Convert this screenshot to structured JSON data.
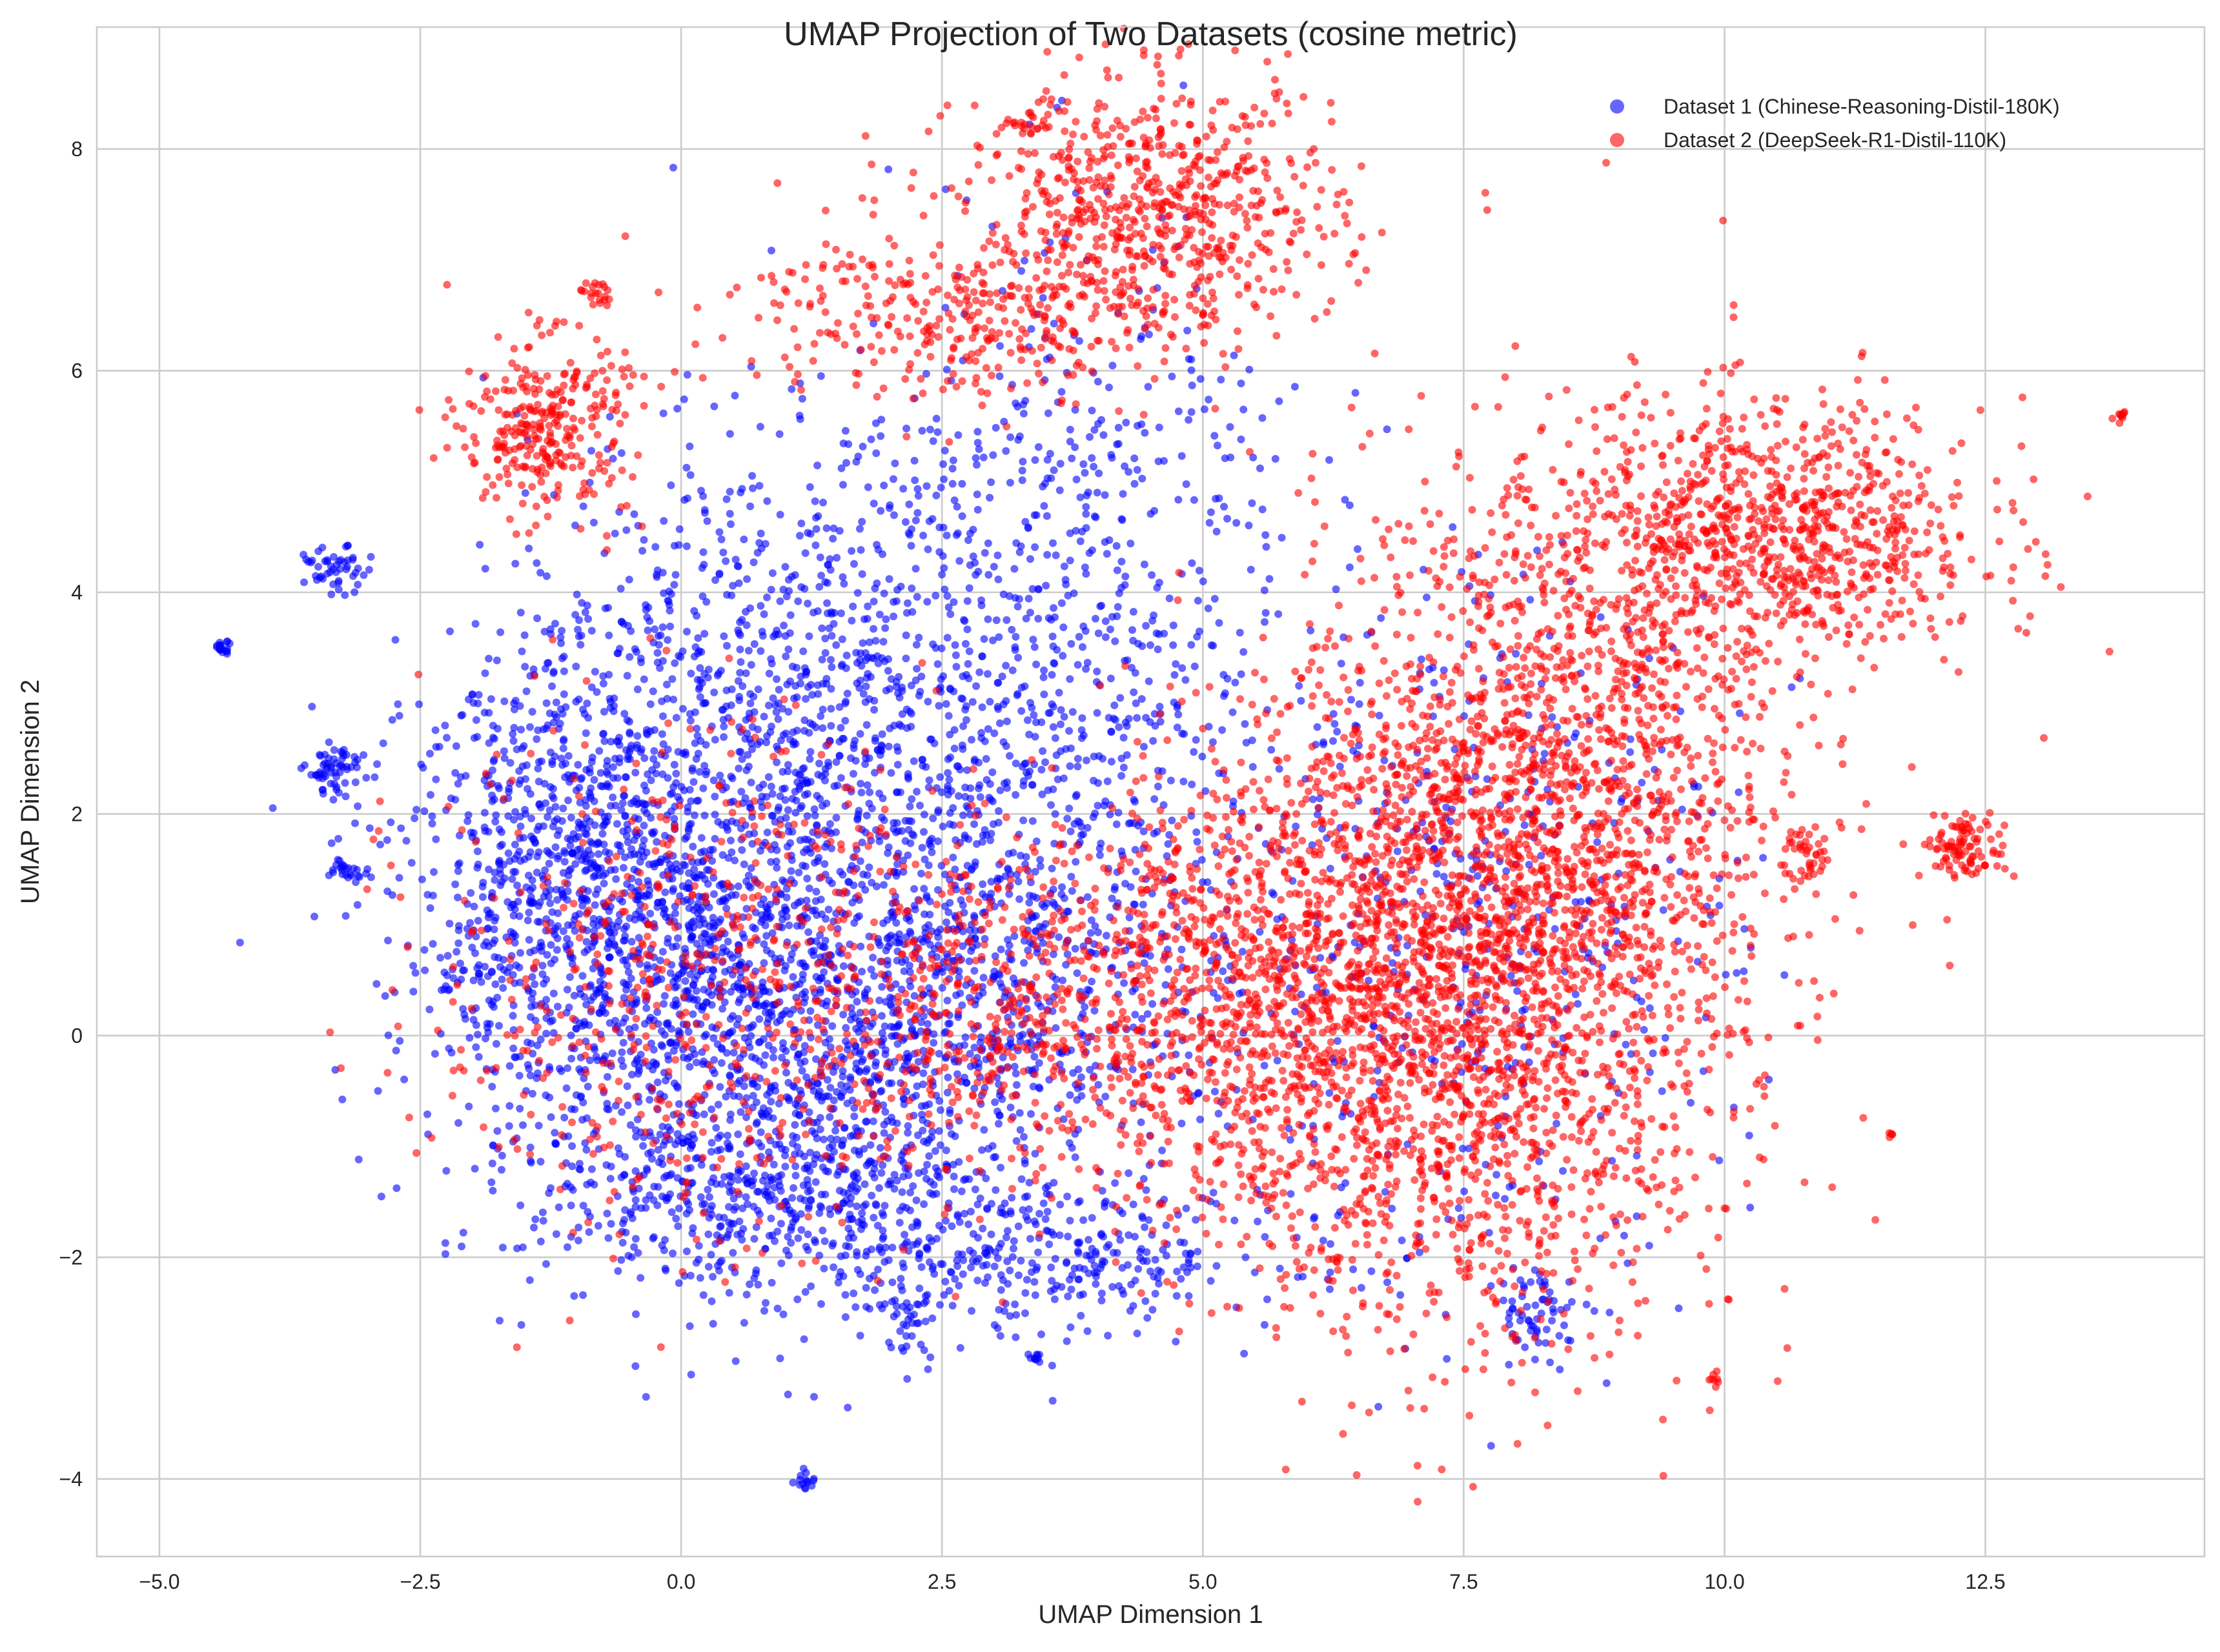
{
  "chart_data": {
    "type": "scatter",
    "title": "UMAP Projection of Two Datasets (cosine metric)",
    "xlabel": "UMAP Dimension 1",
    "ylabel": "UMAP Dimension 2",
    "xlim": [
      -5.6,
      14.6
    ],
    "ylim": [
      -4.7,
      9.1
    ],
    "xticks": [
      -5.0,
      -2.5,
      0.0,
      2.5,
      5.0,
      7.5,
      10.0,
      12.5
    ],
    "xtick_labels": [
      "−5.0",
      "−2.5",
      "0.0",
      "2.5",
      "5.0",
      "7.5",
      "10.0",
      "12.5"
    ],
    "yticks": [
      -4,
      -2,
      0,
      2,
      4,
      6,
      8
    ],
    "ytick_labels": [
      "−4",
      "−2",
      "0",
      "2",
      "4",
      "6",
      "8"
    ],
    "grid": true,
    "legend_position": "top-right",
    "series": [
      {
        "name": "Dataset 1 (Chinese-Reasoning-Distil-180K)",
        "color": "#0000ff",
        "opacity": 0.6,
        "clusters": [
          {
            "center": [
              0.0,
              1.0
            ],
            "spread": [
              1.3,
              1.2
            ],
            "count": 1300
          },
          {
            "center": [
              -1.2,
              1.5
            ],
            "spread": [
              0.7,
              0.9
            ],
            "count": 500
          },
          {
            "center": [
              1.5,
              -0.5
            ],
            "spread": [
              1.4,
              1.0
            ],
            "count": 900
          },
          {
            "center": [
              3.0,
              0.8
            ],
            "spread": [
              1.2,
              1.0
            ],
            "count": 600
          },
          {
            "center": [
              2.5,
              3.2
            ],
            "spread": [
              1.3,
              1.3
            ],
            "count": 600
          },
          {
            "center": [
              0.5,
              3.5
            ],
            "spread": [
              1.0,
              1.0
            ],
            "count": 400
          },
          {
            "center": [
              4.0,
              4.5
            ],
            "spread": [
              1.0,
              1.5
            ],
            "count": 350
          },
          {
            "center": [
              3.5,
              -2.0
            ],
            "spread": [
              1.2,
              0.3
            ],
            "count": 300
          },
          {
            "center": [
              0.5,
              -1.5
            ],
            "spread": [
              1.0,
              0.4
            ],
            "count": 300
          },
          {
            "center": [
              -3.3,
              2.4
            ],
            "spread": [
              0.15,
              0.1
            ],
            "count": 60
          },
          {
            "center": [
              -3.3,
              4.2
            ],
            "spread": [
              0.15,
              0.1
            ],
            "count": 50
          },
          {
            "center": [
              -4.4,
              3.5
            ],
            "spread": [
              0.05,
              0.03
            ],
            "count": 20
          },
          {
            "center": [
              -3.2,
              1.5
            ],
            "spread": [
              0.1,
              0.05
            ],
            "count": 25
          },
          {
            "center": [
              1.2,
              -4.0
            ],
            "spread": [
              0.05,
              0.05
            ],
            "count": 15
          },
          {
            "center": [
              8.2,
              -2.5
            ],
            "spread": [
              0.2,
              0.2
            ],
            "count": 60
          },
          {
            "center": [
              7.5,
              1.0
            ],
            "spread": [
              1.3,
              1.6
            ],
            "count": 500
          },
          {
            "center": [
              2.2,
              -2.6
            ],
            "spread": [
              0.1,
              0.15
            ],
            "count": 30
          },
          {
            "center": [
              3.4,
              -2.9
            ],
            "spread": [
              0.03,
              0.03
            ],
            "count": 10
          }
        ]
      },
      {
        "name": "Dataset 2 (DeepSeek-R1-Distil-110K)",
        "color": "#ff0000",
        "opacity": 0.6,
        "clusters": [
          {
            "center": [
              7.5,
              0.5
            ],
            "spread": [
              1.3,
              1.6
            ],
            "count": 2400
          },
          {
            "center": [
              8.5,
              2.5
            ],
            "spread": [
              1.0,
              1.5
            ],
            "count": 1000
          },
          {
            "center": [
              10.5,
              4.5
            ],
            "spread": [
              1.0,
              0.6
            ],
            "count": 900
          },
          {
            "center": [
              5.5,
              0.3
            ],
            "spread": [
              1.0,
              1.0
            ],
            "count": 800
          },
          {
            "center": [
              3.0,
              0.3
            ],
            "spread": [
              1.1,
              0.8
            ],
            "count": 500
          },
          {
            "center": [
              4.5,
              7.4
            ],
            "spread": [
              0.9,
              0.6
            ],
            "count": 700
          },
          {
            "center": [
              2.5,
              6.5
            ],
            "spread": [
              1.0,
              0.4
            ],
            "count": 300
          },
          {
            "center": [
              -1.3,
              5.5
            ],
            "spread": [
              0.4,
              0.4
            ],
            "count": 300
          },
          {
            "center": [
              0.0,
              0.5
            ],
            "spread": [
              1.2,
              1.2
            ],
            "count": 500
          },
          {
            "center": [
              12.3,
              1.7
            ],
            "spread": [
              0.2,
              0.15
            ],
            "count": 100
          },
          {
            "center": [
              13.8,
              5.6
            ],
            "spread": [
              0.05,
              0.03
            ],
            "count": 10
          },
          {
            "center": [
              9.9,
              -3.1
            ],
            "spread": [
              0.03,
              0.03
            ],
            "count": 8
          },
          {
            "center": [
              11.6,
              -0.9
            ],
            "spread": [
              0.02,
              0.02
            ],
            "count": 5
          },
          {
            "center": [
              10.8,
              1.6
            ],
            "spread": [
              0.1,
              0.15
            ],
            "count": 40
          },
          {
            "center": [
              -0.8,
              6.7
            ],
            "spread": [
              0.1,
              0.05
            ],
            "count": 20
          },
          {
            "center": [
              3.3,
              8.2
            ],
            "spread": [
              0.15,
              0.05
            ],
            "count": 20
          }
        ]
      }
    ]
  }
}
